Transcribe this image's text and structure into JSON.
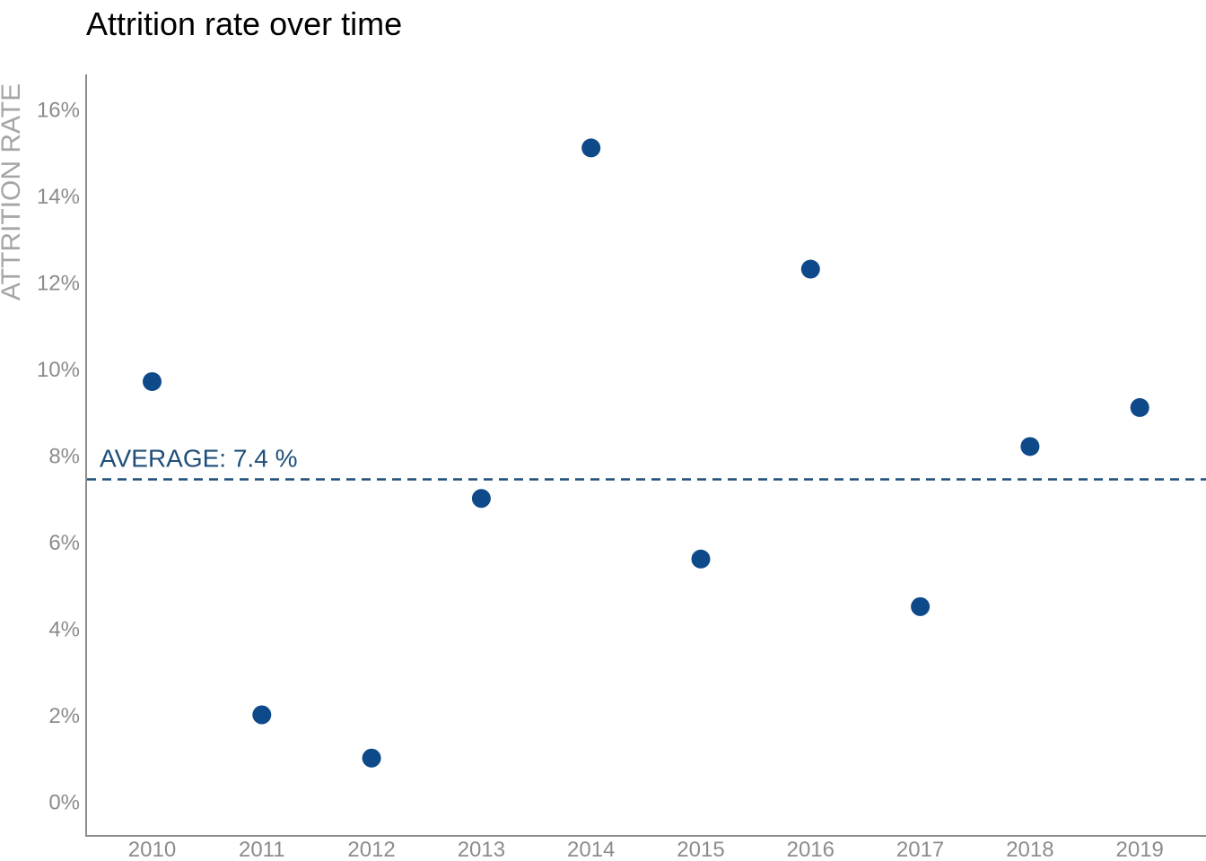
{
  "chart_data": {
    "type": "scatter",
    "title": "Attrition rate over time",
    "xlabel": "",
    "ylabel": "ATTRITION RATE",
    "x": [
      "2010",
      "2011",
      "2012",
      "2013",
      "2014",
      "2015",
      "2016",
      "2017",
      "2018",
      "2019"
    ],
    "y": [
      9.7,
      2.0,
      1.0,
      7.0,
      15.1,
      5.6,
      12.3,
      4.5,
      8.2,
      9.1
    ],
    "y_unit": "%",
    "ylim": [
      0,
      16
    ],
    "yticks": [
      "0%",
      "2%",
      "4%",
      "6%",
      "8%",
      "10%",
      "12%",
      "14%",
      "16%"
    ],
    "average": {
      "label": "AVERAGE:  7.4 %",
      "value": 7.44
    },
    "grid": false,
    "legend": "none",
    "colors": {
      "point": "#0e4a8a",
      "average_line": "#1f4e79",
      "average_label": "#1f4e79",
      "axis": "#8c8c8c",
      "tick_label": "#8c8c8c",
      "axis_title": "#a6a6a6"
    }
  }
}
